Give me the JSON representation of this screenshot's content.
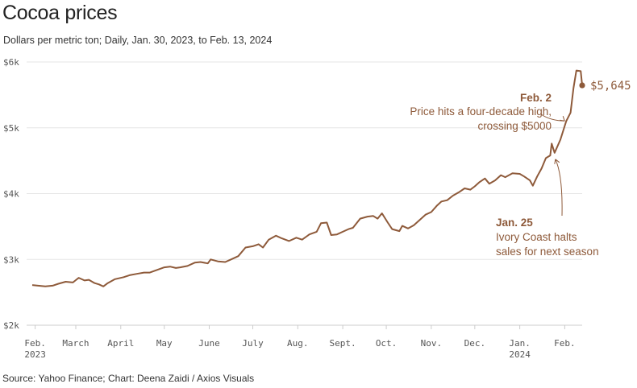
{
  "title": "Cocoa prices",
  "subtitle": "Dollars per metric ton; Daily, Jan. 30, 2023, to Feb. 13, 2024",
  "source": "Source: Yahoo Finance; Chart: Deena Zaidi / Axios Visuals",
  "colors": {
    "line": "#8e5a3a",
    "grid": "#e6e6e6",
    "axis": "#cccccc",
    "text": "#555555"
  },
  "chart_data": {
    "type": "line",
    "title": "Cocoa prices",
    "subtitle": "Dollars per metric ton; Daily, Jan. 30, 2023, to Feb. 13, 2024",
    "ylabel": "",
    "xlabel": "",
    "ylim": [
      2000,
      6000
    ],
    "xlim": [
      "2023-01-30",
      "2024-02-13"
    ],
    "grid": true,
    "yticks": [
      {
        "value": 2000,
        "label": "$2k"
      },
      {
        "value": 3000,
        "label": "$3k"
      },
      {
        "value": 4000,
        "label": "$4k"
      },
      {
        "value": 5000,
        "label": "$5k"
      },
      {
        "value": 6000,
        "label": "$6k"
      }
    ],
    "xticks": [
      {
        "date": "2023-02-01",
        "label": "Feb.",
        "sublabel": "2023"
      },
      {
        "date": "2023-03-01",
        "label": "March",
        "sublabel": ""
      },
      {
        "date": "2023-04-01",
        "label": "April",
        "sublabel": ""
      },
      {
        "date": "2023-05-01",
        "label": "May",
        "sublabel": ""
      },
      {
        "date": "2023-06-01",
        "label": "June",
        "sublabel": ""
      },
      {
        "date": "2023-07-01",
        "label": "July",
        "sublabel": ""
      },
      {
        "date": "2023-08-01",
        "label": "Aug.",
        "sublabel": ""
      },
      {
        "date": "2023-09-01",
        "label": "Sept.",
        "sublabel": ""
      },
      {
        "date": "2023-10-01",
        "label": "Oct.",
        "sublabel": ""
      },
      {
        "date": "2023-11-01",
        "label": "Nov.",
        "sublabel": ""
      },
      {
        "date": "2023-12-01",
        "label": "Dec.",
        "sublabel": ""
      },
      {
        "date": "2024-01-01",
        "label": "Jan.",
        "sublabel": "2024"
      },
      {
        "date": "2024-02-01",
        "label": "Feb.",
        "sublabel": ""
      }
    ],
    "series": [
      {
        "points": [
          [
            "2023-01-30",
            2610
          ],
          [
            "2023-02-03",
            2600
          ],
          [
            "2023-02-08",
            2590
          ],
          [
            "2023-02-13",
            2600
          ],
          [
            "2023-02-17",
            2630
          ],
          [
            "2023-02-22",
            2660
          ],
          [
            "2023-02-27",
            2650
          ],
          [
            "2023-03-03",
            2720
          ],
          [
            "2023-03-07",
            2680
          ],
          [
            "2023-03-10",
            2690
          ],
          [
            "2023-03-14",
            2640
          ],
          [
            "2023-03-17",
            2620
          ],
          [
            "2023-03-20",
            2590
          ],
          [
            "2023-03-23",
            2640
          ],
          [
            "2023-03-28",
            2700
          ],
          [
            "2023-04-03",
            2730
          ],
          [
            "2023-04-07",
            2760
          ],
          [
            "2023-04-12",
            2780
          ],
          [
            "2023-04-17",
            2800
          ],
          [
            "2023-04-21",
            2800
          ],
          [
            "2023-04-26",
            2840
          ],
          [
            "2023-05-01",
            2880
          ],
          [
            "2023-05-05",
            2890
          ],
          [
            "2023-05-09",
            2870
          ],
          [
            "2023-05-12",
            2880
          ],
          [
            "2023-05-17",
            2900
          ],
          [
            "2023-05-22",
            2950
          ],
          [
            "2023-05-26",
            2960
          ],
          [
            "2023-05-31",
            2940
          ],
          [
            "2023-06-02",
            3000
          ],
          [
            "2023-06-07",
            2970
          ],
          [
            "2023-06-12",
            2960
          ],
          [
            "2023-06-16",
            3000
          ],
          [
            "2023-06-21",
            3050
          ],
          [
            "2023-06-26",
            3180
          ],
          [
            "2023-07-01",
            3200
          ],
          [
            "2023-07-05",
            3230
          ],
          [
            "2023-07-08",
            3180
          ],
          [
            "2023-07-12",
            3300
          ],
          [
            "2023-07-17",
            3360
          ],
          [
            "2023-07-21",
            3320
          ],
          [
            "2023-07-26",
            3280
          ],
          [
            "2023-07-31",
            3330
          ],
          [
            "2023-08-04",
            3300
          ],
          [
            "2023-08-09",
            3380
          ],
          [
            "2023-08-14",
            3420
          ],
          [
            "2023-08-17",
            3550
          ],
          [
            "2023-08-21",
            3560
          ],
          [
            "2023-08-24",
            3370
          ],
          [
            "2023-08-28",
            3380
          ],
          [
            "2023-09-01",
            3420
          ],
          [
            "2023-09-05",
            3460
          ],
          [
            "2023-09-08",
            3480
          ],
          [
            "2023-09-13",
            3620
          ],
          [
            "2023-09-18",
            3650
          ],
          [
            "2023-09-22",
            3660
          ],
          [
            "2023-09-25",
            3620
          ],
          [
            "2023-09-28",
            3700
          ],
          [
            "2023-10-02",
            3560
          ],
          [
            "2023-10-05",
            3460
          ],
          [
            "2023-10-10",
            3430
          ],
          [
            "2023-10-12",
            3510
          ],
          [
            "2023-10-16",
            3470
          ],
          [
            "2023-10-20",
            3520
          ],
          [
            "2023-10-24",
            3600
          ],
          [
            "2023-10-28",
            3680
          ],
          [
            "2023-11-01",
            3720
          ],
          [
            "2023-11-05",
            3820
          ],
          [
            "2023-11-08",
            3880
          ],
          [
            "2023-11-12",
            3900
          ],
          [
            "2023-11-16",
            3970
          ],
          [
            "2023-11-20",
            4020
          ],
          [
            "2023-11-24",
            4080
          ],
          [
            "2023-11-28",
            4060
          ],
          [
            "2023-12-01",
            4110
          ],
          [
            "2023-12-04",
            4170
          ],
          [
            "2023-12-08",
            4230
          ],
          [
            "2023-12-11",
            4150
          ],
          [
            "2023-12-15",
            4200
          ],
          [
            "2023-12-19",
            4280
          ],
          [
            "2023-12-22",
            4250
          ],
          [
            "2023-12-27",
            4310
          ],
          [
            "2024-01-01",
            4300
          ],
          [
            "2024-01-04",
            4260
          ],
          [
            "2024-01-08",
            4200
          ],
          [
            "2024-01-10",
            4120
          ],
          [
            "2024-01-13",
            4260
          ],
          [
            "2024-01-16",
            4380
          ],
          [
            "2024-01-19",
            4540
          ],
          [
            "2024-01-22",
            4580
          ],
          [
            "2024-01-23",
            4760
          ],
          [
            "2024-01-25",
            4620
          ],
          [
            "2024-01-29",
            4820
          ],
          [
            "2024-02-02",
            5100
          ],
          [
            "2024-02-05",
            5230
          ],
          [
            "2024-02-07",
            5600
          ],
          [
            "2024-02-09",
            5870
          ],
          [
            "2024-02-12",
            5860
          ],
          [
            "2024-02-13",
            5645
          ]
        ]
      }
    ],
    "end_value": {
      "date": "2024-02-13",
      "value": 5645,
      "label": "$5,645"
    },
    "annotations": [
      {
        "id": "feb2",
        "date": "2024-02-02",
        "value": 5080,
        "title": "Feb. 2",
        "lines": [
          "Price hits a four-decade high,",
          "crossing $5000"
        ]
      },
      {
        "id": "jan25",
        "date": "2024-01-25",
        "value": 4620,
        "title": "Jan. 25",
        "lines": [
          "Ivory Coast halts",
          "sales for next season"
        ]
      }
    ]
  }
}
